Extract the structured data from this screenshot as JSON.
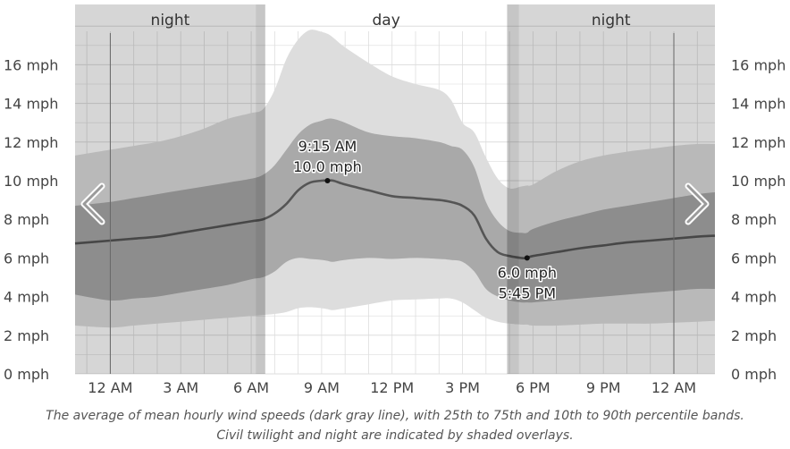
{
  "chart_data": {
    "type": "area",
    "x_ticks": [
      "12 AM",
      "3 AM",
      "6 AM",
      "9 AM",
      "12 PM",
      "3 PM",
      "6 PM",
      "9 PM",
      "12 AM"
    ],
    "y_tick_labels": [
      "0 mph",
      "2 mph",
      "4 mph",
      "6 mph",
      "8 mph",
      "10 mph",
      "12 mph",
      "14 mph",
      "16 mph"
    ],
    "ylim": [
      0,
      18.5
    ],
    "xlim_hours": [
      -1.5,
      25.75
    ],
    "grid": true,
    "periods": [
      {
        "label": "night",
        "start": -1.5,
        "end": 6.6,
        "shaded": true
      },
      {
        "label": "day",
        "start": 6.6,
        "end": 16.9,
        "shaded": false
      },
      {
        "label": "night",
        "start": 16.9,
        "end": 25.75,
        "shaded": true
      }
    ],
    "twilight": [
      {
        "start": 6.2,
        "end": 6.6
      },
      {
        "start": 16.9,
        "end": 17.4
      }
    ],
    "hours": [
      -1.5,
      0,
      1,
      2,
      3,
      4,
      5,
      6,
      6.5,
      7,
      7.5,
      8,
      8.5,
      9,
      9.25,
      9.5,
      10,
      11,
      12,
      13,
      14,
      14.5,
      15,
      15.5,
      16,
      16.5,
      17,
      17.5,
      17.75,
      18,
      19,
      20,
      21,
      22,
      23,
      24,
      25,
      25.75
    ],
    "mean": [
      6.75,
      6.9,
      7.0,
      7.1,
      7.3,
      7.5,
      7.7,
      7.9,
      8.0,
      8.3,
      8.8,
      9.5,
      9.9,
      10.0,
      10.0,
      10.0,
      9.8,
      9.5,
      9.2,
      9.1,
      9.0,
      8.9,
      8.7,
      8.2,
      7.0,
      6.3,
      6.1,
      6.0,
      6.0,
      6.1,
      6.3,
      6.5,
      6.65,
      6.8,
      6.9,
      7.0,
      7.1,
      7.15
    ],
    "p25": [
      4.1,
      3.8,
      3.9,
      4.0,
      4.2,
      4.4,
      4.6,
      4.9,
      5.0,
      5.3,
      5.8,
      6.0,
      5.95,
      5.9,
      5.85,
      5.8,
      5.9,
      6.0,
      5.95,
      6.0,
      5.95,
      5.9,
      5.8,
      5.3,
      4.4,
      4.0,
      3.8,
      3.7,
      3.7,
      3.7,
      3.8,
      3.9,
      4.0,
      4.1,
      4.2,
      4.3,
      4.4,
      4.4
    ],
    "p75": [
      8.7,
      8.9,
      9.1,
      9.3,
      9.5,
      9.7,
      9.9,
      10.1,
      10.3,
      10.8,
      11.6,
      12.4,
      12.9,
      13.1,
      13.2,
      13.2,
      13.0,
      12.5,
      12.3,
      12.2,
      12.0,
      11.8,
      11.6,
      10.7,
      8.9,
      7.9,
      7.4,
      7.3,
      7.3,
      7.5,
      7.9,
      8.2,
      8.5,
      8.7,
      8.9,
      9.1,
      9.3,
      9.4
    ],
    "p10": [
      2.5,
      2.4,
      2.5,
      2.6,
      2.7,
      2.8,
      2.9,
      3.0,
      3.05,
      3.1,
      3.2,
      3.4,
      3.45,
      3.4,
      3.35,
      3.3,
      3.4,
      3.6,
      3.8,
      3.85,
      3.9,
      3.9,
      3.7,
      3.3,
      2.9,
      2.7,
      2.6,
      2.55,
      2.55,
      2.5,
      2.5,
      2.55,
      2.6,
      2.6,
      2.6,
      2.65,
      2.7,
      2.75
    ],
    "p90": [
      11.3,
      11.6,
      11.8,
      12.0,
      12.3,
      12.7,
      13.2,
      13.5,
      13.7,
      14.7,
      16.3,
      17.3,
      17.8,
      17.7,
      17.6,
      17.4,
      16.9,
      16.1,
      15.4,
      15.0,
      14.7,
      14.2,
      13.0,
      12.5,
      11.2,
      10.1,
      9.6,
      9.7,
      9.75,
      9.8,
      10.5,
      11.0,
      11.3,
      11.5,
      11.65,
      11.8,
      11.9,
      11.9
    ],
    "annotations": [
      {
        "hour": 9.25,
        "value": 10.0,
        "time_label": "9:15 AM",
        "value_label": "10.0 mph",
        "position": "above"
      },
      {
        "hour": 17.75,
        "value": 6.0,
        "time_label": "5:45 PM",
        "value_label": "6.0 mph",
        "position": "below"
      }
    ],
    "colors": {
      "mean_line": "#555555",
      "band_inner": "#a9a9a9",
      "band_outer": "#dddddd",
      "night_overlay": "#000000",
      "grid": "#dddddd",
      "marker": "#111111"
    },
    "caption": "The average of mean hourly wind speeds (dark gray line), with 25th to 75th and 10th to 90th percentile bands. Civil twilight and night are indicated by shaded overlays."
  },
  "navigation": {
    "prev_icon": "chevron-left-icon",
    "next_icon": "chevron-right-icon"
  }
}
